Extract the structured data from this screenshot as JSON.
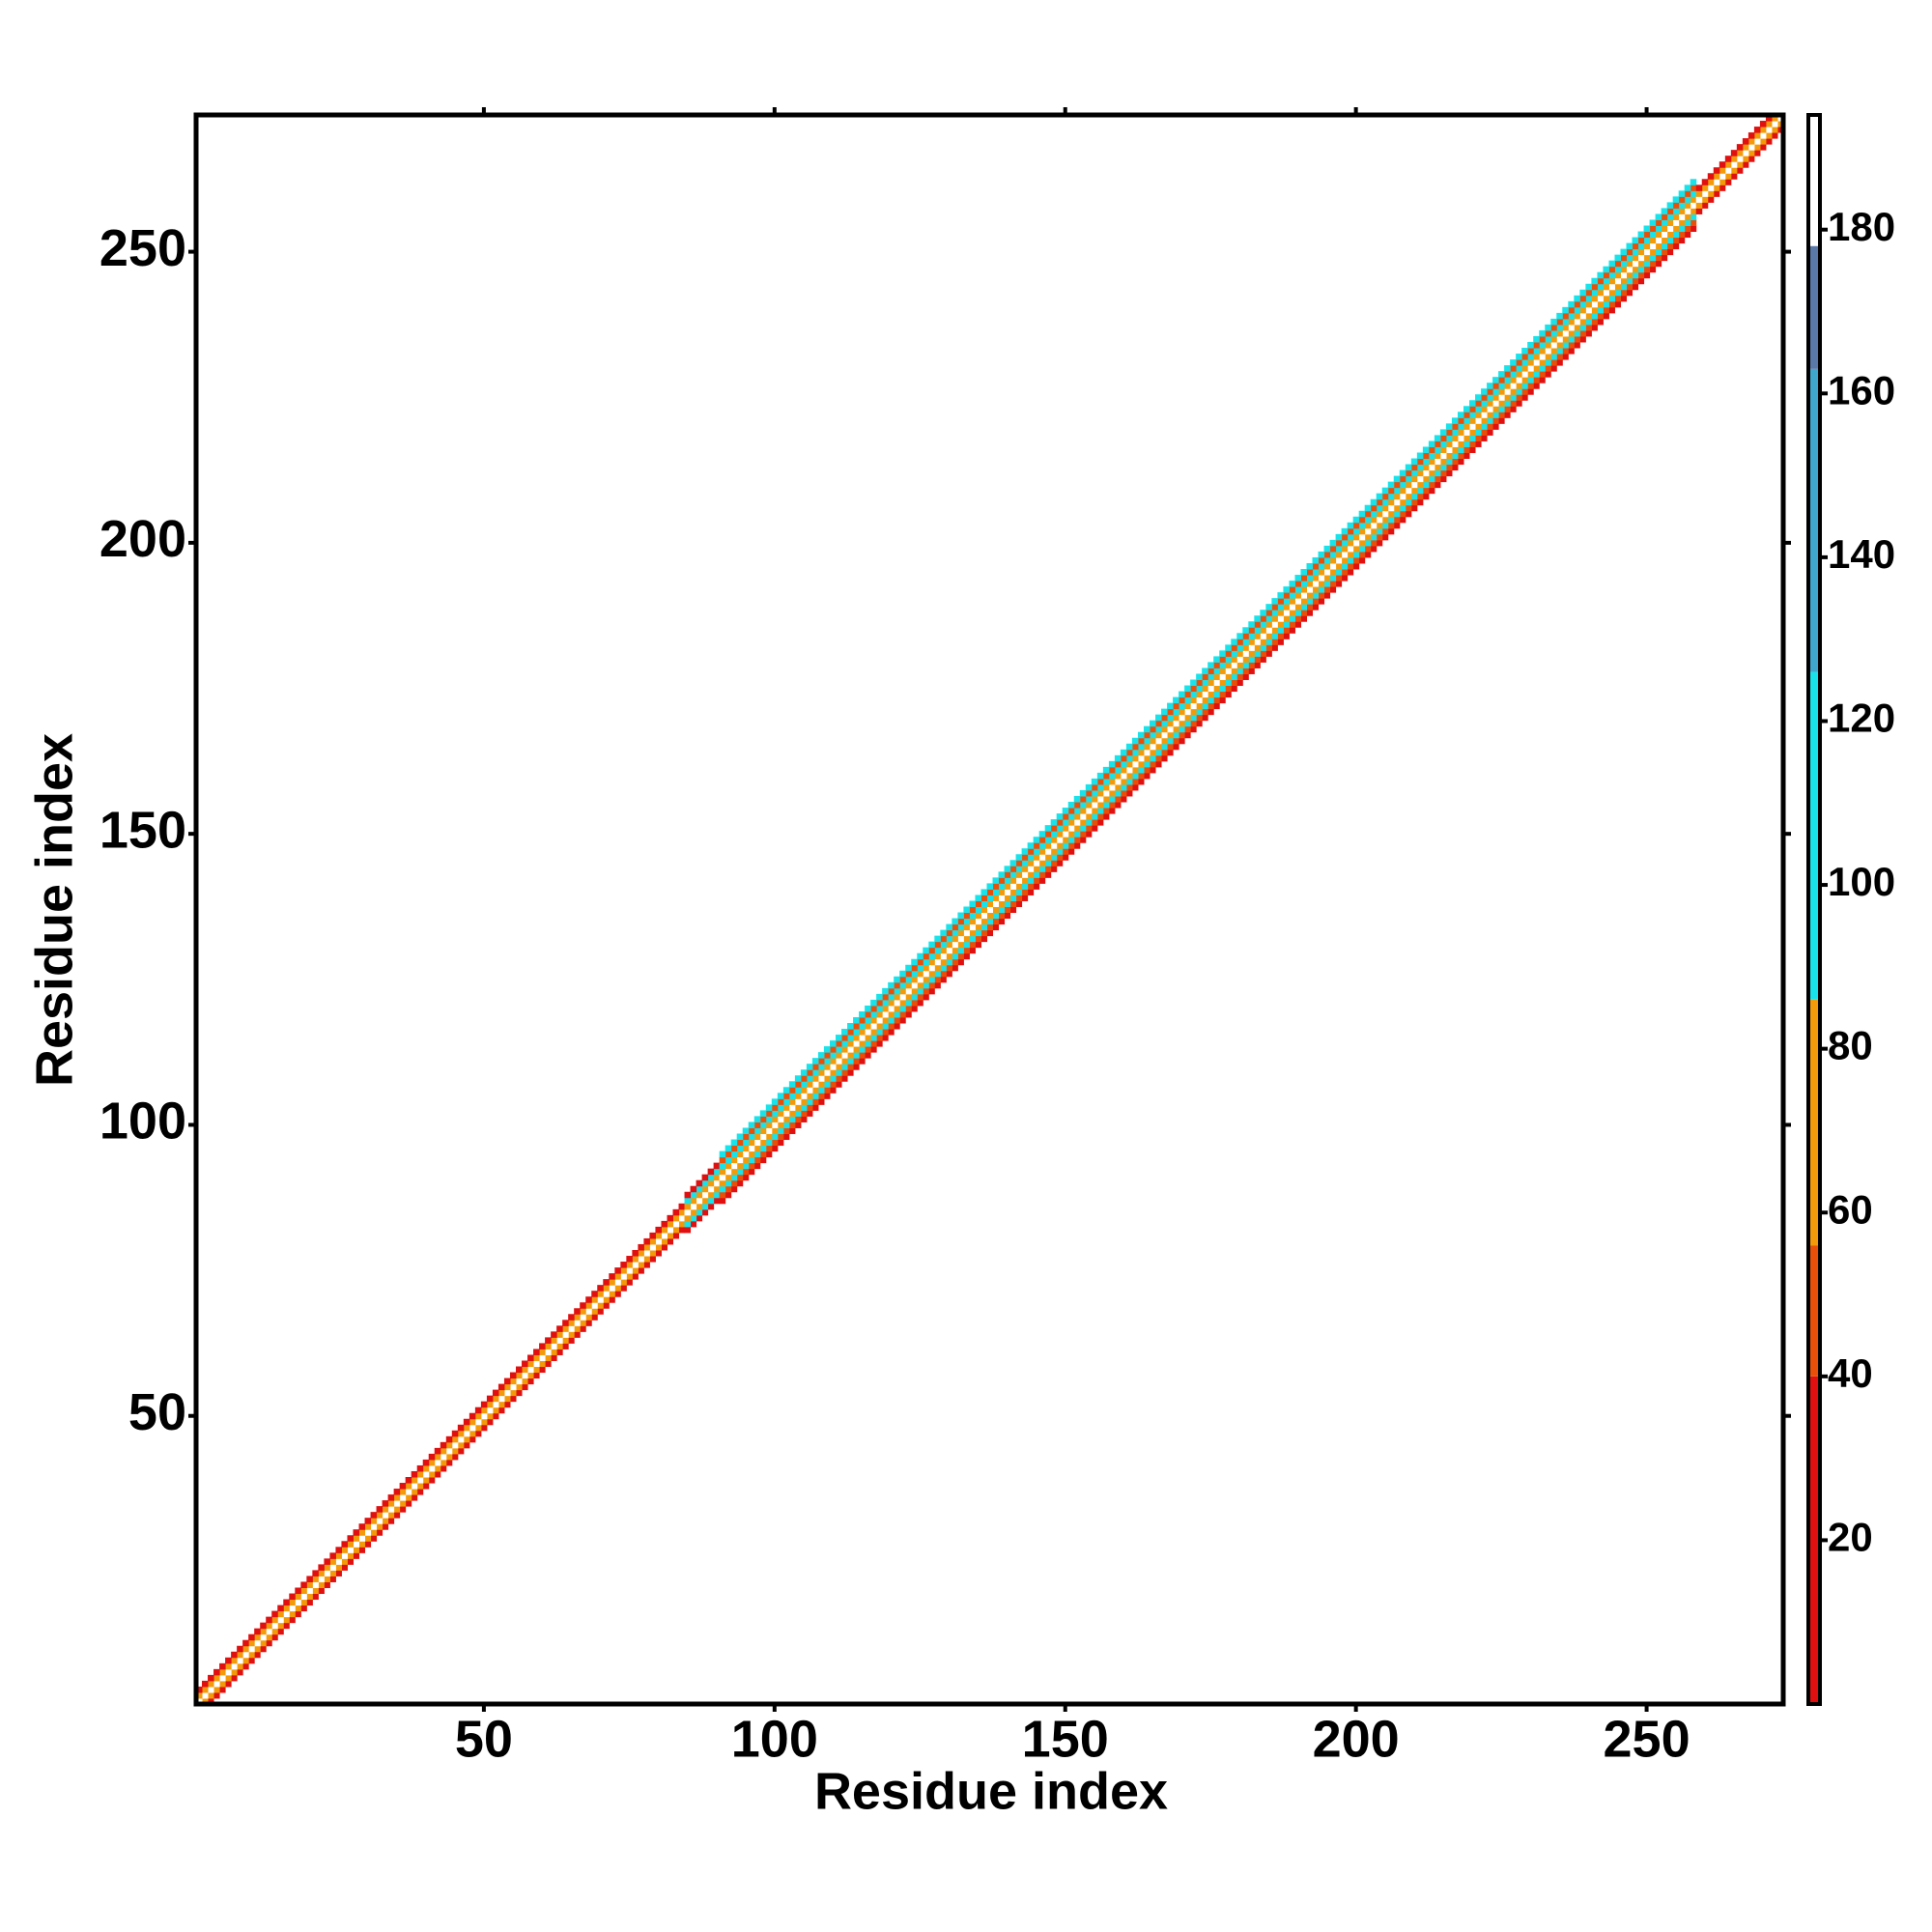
{
  "chart_data": {
    "type": "heatmap",
    "x_label": "Residue index",
    "y_label": "Residue index",
    "xlim": [
      0.5,
      273.5
    ],
    "ylim": [
      0.5,
      273.5
    ],
    "xticks": [
      50,
      100,
      150,
      200,
      250
    ],
    "yticks": [
      50,
      100,
      150,
      200,
      250
    ],
    "bands": [
      {
        "start": 1,
        "end": 84,
        "offsets": [
          -2,
          -1,
          0,
          1,
          2
        ],
        "values": [
          22,
          70,
          190,
          72,
          35
        ]
      },
      {
        "start": 85,
        "end": 90,
        "offsets": [
          -3,
          -2,
          -1,
          0,
          1,
          2,
          3
        ],
        "values": [
          25,
          100,
          60,
          190,
          60,
          100,
          30
        ]
      },
      {
        "start": 91,
        "end": 258,
        "offsets": [
          -4,
          -3,
          -2,
          -1,
          0,
          1,
          2,
          3,
          4
        ],
        "values": [
          22,
          45,
          100,
          65,
          190,
          62,
          100,
          48,
          105
        ]
      },
      {
        "start": 259,
        "end": 273,
        "offsets": [
          -2,
          -1,
          0,
          1,
          2
        ],
        "values": [
          20,
          70,
          190,
          65,
          30
        ]
      }
    ],
    "colorbar": {
      "clim": [
        0,
        194
      ],
      "ticks": [
        20,
        40,
        60,
        80,
        100,
        120,
        140,
        160,
        180
      ],
      "steps": [
        {
          "from": 0,
          "to": 40,
          "color": "#e01010"
        },
        {
          "from": 40,
          "to": 56,
          "color": "#e8500a"
        },
        {
          "from": 56,
          "to": 86,
          "color": "#f39a0a"
        },
        {
          "from": 86,
          "to": 126,
          "color": "#19e3ea"
        },
        {
          "from": 126,
          "to": 163,
          "color": "#3fa6cc"
        },
        {
          "from": 163,
          "to": 178,
          "color": "#5a78a8"
        },
        {
          "from": 178,
          "to": 194,
          "color": "#ffffff"
        }
      ]
    }
  }
}
